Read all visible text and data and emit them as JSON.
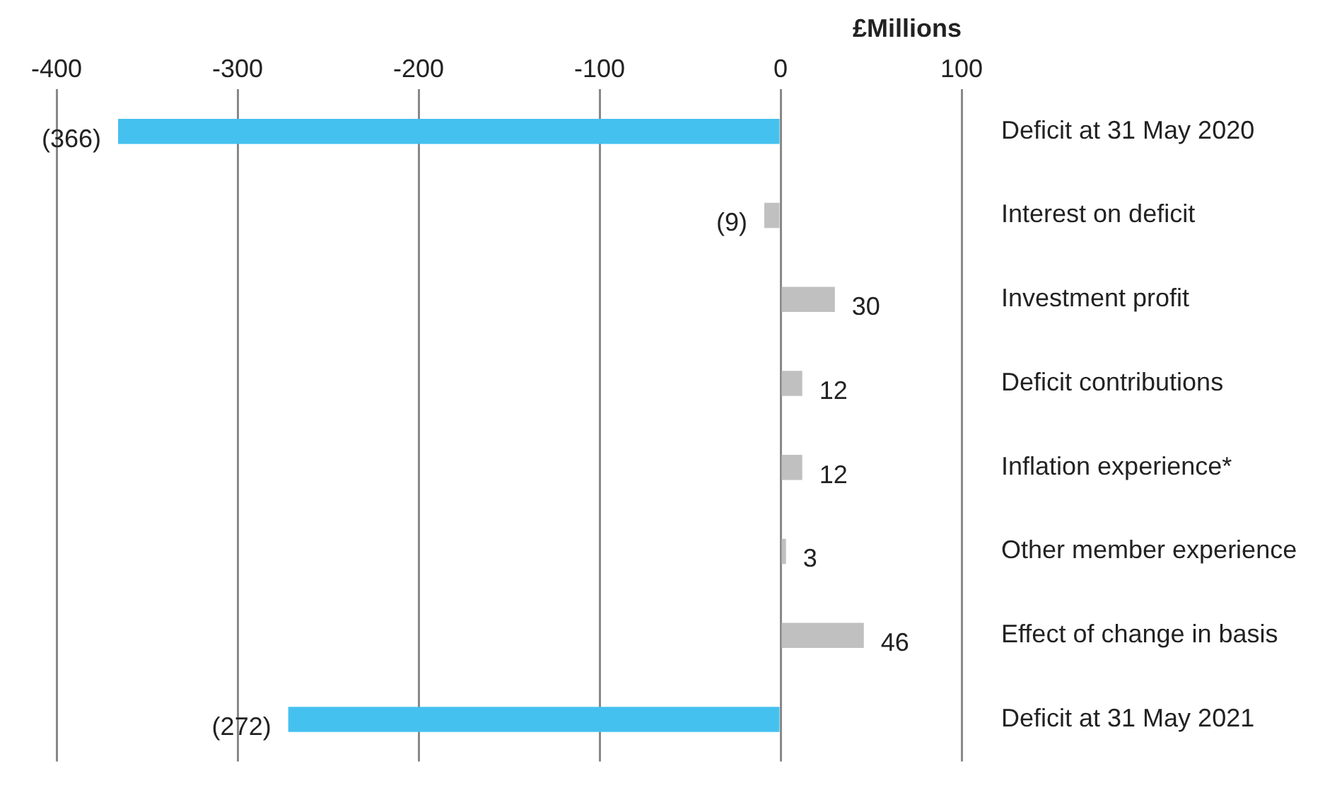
{
  "chart_data": {
    "type": "bar",
    "orientation": "horizontal",
    "xlabel": "£Millions",
    "categories": [
      "Deficit at 31 May 2020",
      "Interest on deficit",
      "Investment profit",
      "Deficit contributions",
      "Inflation experience*",
      "Other member experience",
      "Effect of change in basis",
      "Deficit at 31 May 2021"
    ],
    "values": [
      -366,
      -9,
      30,
      12,
      12,
      3,
      46,
      -272
    ],
    "colors": [
      "#45c1ef",
      "#c0c0c0",
      "#c0c0c0",
      "#c0c0c0",
      "#c0c0c0",
      "#c0c0c0",
      "#c0c0c0",
      "#45c1ef"
    ],
    "value_labels": [
      "(366)",
      "(9)",
      "30",
      "12",
      "12",
      "3",
      "46",
      "(272)"
    ],
    "xlim": [
      -400,
      100
    ],
    "xticks": [
      -400,
      -300,
      -200,
      -100,
      0,
      100
    ],
    "grid": "x",
    "legend": false
  }
}
